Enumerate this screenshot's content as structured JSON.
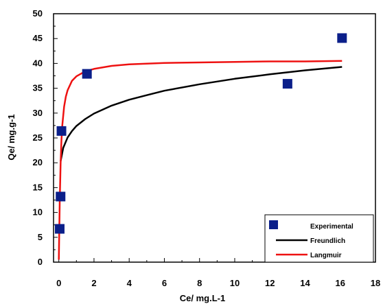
{
  "chart_data": {
    "type": "scatter",
    "title": "",
    "xlabel": "Ce/ mg.L-1",
    "ylabel": "Qe/ mg.g-1",
    "xlim": [
      -0.3,
      18
    ],
    "ylim": [
      0,
      50
    ],
    "x_ticks": [
      0,
      2,
      4,
      6,
      8,
      10,
      12,
      14,
      16,
      18
    ],
    "y_ticks": [
      0,
      5,
      10,
      15,
      20,
      25,
      30,
      35,
      40,
      45,
      50
    ],
    "grid": false,
    "legend_position": "bottom-right",
    "series": [
      {
        "name": "Experimental",
        "kind": "scatter",
        "marker": "square",
        "color": "#0b1f8a",
        "x": [
          0.05,
          0.1,
          0.15,
          1.6,
          13.0,
          16.1
        ],
        "y": [
          6.7,
          13.2,
          26.4,
          37.9,
          35.9,
          45.1
        ]
      },
      {
        "name": "Freundlich",
        "kind": "line",
        "color": "#000000",
        "x": [
          0.1,
          0.25,
          0.5,
          0.75,
          1.0,
          1.5,
          2.0,
          3.0,
          4.0,
          5.0,
          6.0,
          8.0,
          10.0,
          12.0,
          14.0,
          16.1
        ],
        "y": [
          20.3,
          23.0,
          25.1,
          26.4,
          27.4,
          28.8,
          29.9,
          31.5,
          32.7,
          33.6,
          34.5,
          35.8,
          36.9,
          37.8,
          38.6,
          39.3
        ]
      },
      {
        "name": "Langmuir",
        "kind": "line",
        "color": "#ee1111",
        "x": [
          0.0,
          0.05,
          0.1,
          0.15,
          0.2,
          0.3,
          0.4,
          0.5,
          0.75,
          1.0,
          1.5,
          2.0,
          3.0,
          4.0,
          6.0,
          8.0,
          10.0,
          12.0,
          14.0,
          16.1
        ],
        "y": [
          0.5,
          12.0,
          19.8,
          24.5,
          27.6,
          31.3,
          33.3,
          34.6,
          36.5,
          37.4,
          38.4,
          38.9,
          39.5,
          39.8,
          40.1,
          40.2,
          40.3,
          40.4,
          40.4,
          40.5
        ]
      }
    ]
  }
}
